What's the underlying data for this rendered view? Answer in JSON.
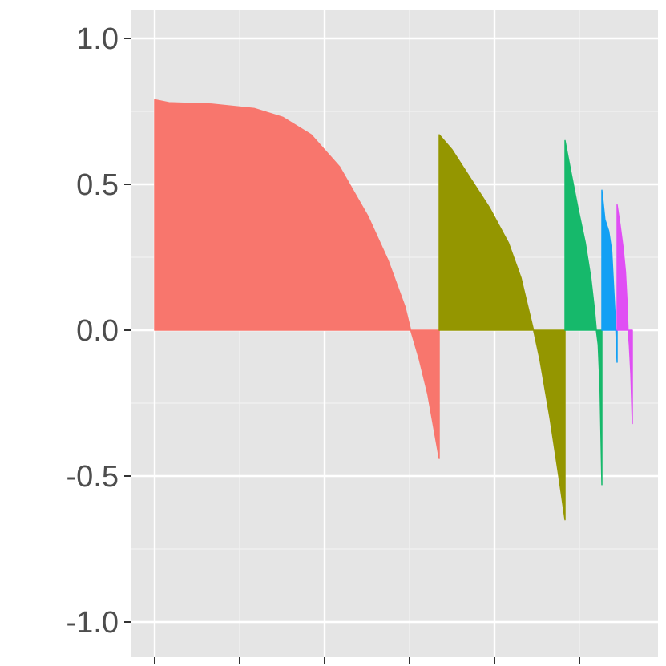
{
  "chart_data": {
    "type": "bar",
    "description_note": "",
    "title": "",
    "xlabel": "",
    "ylabel": "",
    "ylim": [
      -1.1,
      1.1
    ],
    "y_ticks": [
      1.0,
      0.5,
      0.0,
      -0.5,
      -1.0
    ],
    "y_tick_labels": [
      "1.0-",
      "0.5-",
      "0.0-",
      "-0.5-",
      "-1.0-"
    ],
    "x_tick_labels": [],
    "grid": true,
    "legend": "none",
    "panel_background": "#e5e5e5",
    "series": [
      {
        "color": "#f8766d",
        "values_start_end": [
          0.79,
          -0.44
        ],
        "profile": [
          [
            0.0,
            0.79
          ],
          [
            0.05,
            0.78
          ],
          [
            0.2,
            0.775
          ],
          [
            0.35,
            0.76
          ],
          [
            0.45,
            0.73
          ],
          [
            0.55,
            0.67
          ],
          [
            0.65,
            0.56
          ],
          [
            0.75,
            0.39
          ],
          [
            0.82,
            0.24
          ],
          [
            0.88,
            0.08
          ],
          [
            0.9,
            0.0
          ],
          [
            0.93,
            -0.1
          ],
          [
            0.96,
            -0.22
          ],
          [
            1.0,
            -0.44
          ]
        ]
      },
      {
        "color": "#949600",
        "values_start_end": [
          0.67,
          -0.65
        ],
        "profile": [
          [
            0.0,
            0.67
          ],
          [
            0.1,
            0.62
          ],
          [
            0.25,
            0.52
          ],
          [
            0.4,
            0.42
          ],
          [
            0.55,
            0.3
          ],
          [
            0.65,
            0.18
          ],
          [
            0.7,
            0.09
          ],
          [
            0.75,
            0.0
          ],
          [
            0.8,
            -0.1
          ],
          [
            0.88,
            -0.3
          ],
          [
            0.95,
            -0.5
          ],
          [
            1.0,
            -0.65
          ]
        ]
      },
      {
        "color": "#16b96b",
        "values_start_end": [
          0.65,
          -0.53
        ],
        "profile": [
          [
            0.0,
            0.65
          ],
          [
            0.15,
            0.55
          ],
          [
            0.35,
            0.42
          ],
          [
            0.55,
            0.3
          ],
          [
            0.7,
            0.18
          ],
          [
            0.8,
            0.07
          ],
          [
            0.85,
            0.0
          ],
          [
            0.9,
            -0.05
          ],
          [
            0.95,
            -0.2
          ],
          [
            1.0,
            -0.53
          ]
        ]
      },
      {
        "color": "#12a0f4",
        "values_start_end": [
          0.48,
          -0.11
        ],
        "profile": [
          [
            0.0,
            0.48
          ],
          [
            0.2,
            0.38
          ],
          [
            0.45,
            0.34
          ],
          [
            0.65,
            0.27
          ],
          [
            0.8,
            0.12
          ],
          [
            0.88,
            0.04
          ],
          [
            0.92,
            0.0
          ],
          [
            0.95,
            -0.05
          ],
          [
            1.0,
            -0.11
          ]
        ]
      },
      {
        "color": "#e04ff4",
        "values_start_end": [
          0.43,
          -0.32
        ],
        "profile": [
          [
            0.0,
            0.43
          ],
          [
            0.2,
            0.36
          ],
          [
            0.4,
            0.28
          ],
          [
            0.55,
            0.2
          ],
          [
            0.65,
            0.1
          ],
          [
            0.72,
            0.0
          ],
          [
            0.8,
            -0.05
          ],
          [
            0.9,
            -0.15
          ],
          [
            1.0,
            -0.32
          ]
        ]
      }
    ]
  }
}
